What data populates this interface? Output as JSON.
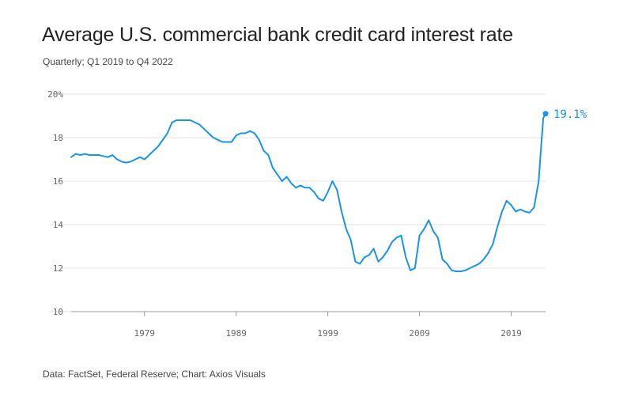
{
  "title": "Average U.S. commercial bank credit card interest rate",
  "subtitle": "Quarterly; Q1 2019 to Q4 2022",
  "source": "Data: FactSet, Federal Reserve; Chart: Axios Visuals",
  "colors": {
    "line": "#1a94e6",
    "grid": "#e3e3e3",
    "axis": "#999999",
    "text": "#222222"
  },
  "chart_data": {
    "type": "line",
    "title": "Average U.S. commercial bank credit card interest rate",
    "subtitle": "Quarterly; Q1 2019 to Q4 2022",
    "xlabel": "",
    "ylabel": "",
    "xlim": [
      1971.0,
      2022.75
    ],
    "ylim": [
      10,
      20
    ],
    "xticks": [
      1979,
      1989,
      1999,
      2009,
      2019
    ],
    "xtick_labels": [
      "1979",
      "1989",
      "1999",
      "2009",
      "2019"
    ],
    "yticks": [
      10,
      12,
      14,
      16,
      18,
      20
    ],
    "ytick_labels": [
      "10",
      "12",
      "14",
      "16",
      "18",
      "20%"
    ],
    "grid": "horizontal",
    "series": [
      {
        "x": [
          1971.0,
          1971.5,
          1972.0,
          1972.5,
          1973.0,
          1974.0,
          1975.0,
          1975.5,
          1976.0,
          1976.5,
          1977.0,
          1977.5,
          1978.0,
          1978.5,
          1979.0,
          1979.5,
          1980.0,
          1980.5,
          1981.0,
          1981.5,
          1982.0,
          1982.5,
          1983.0,
          1984.0,
          1985.0,
          1985.5,
          1986.0,
          1986.5,
          1987.0,
          1987.5,
          1988.0,
          1988.5,
          1989.0,
          1989.5,
          1990.0,
          1990.5,
          1991.0,
          1991.5,
          1992.0,
          1992.5,
          1993.0,
          1993.5,
          1994.0,
          1994.5,
          1995.0,
          1995.5,
          1996.0,
          1996.5,
          1997.0,
          1997.5,
          1998.0,
          1998.5,
          1999.0,
          1999.5,
          2000.0,
          2000.5,
          2001.0,
          2001.5,
          2002.0,
          2002.5,
          2003.0,
          2003.5,
          2004.0,
          2004.5,
          2005.0,
          2005.5,
          2006.0,
          2006.5,
          2007.0,
          2007.5,
          2008.0,
          2008.5,
          2009.0,
          2009.5,
          2010.0,
          2010.5,
          2011.0,
          2011.5,
          2012.0,
          2012.5,
          2013.0,
          2013.5,
          2014.0,
          2014.5,
          2015.0,
          2015.5,
          2016.0,
          2016.5,
          2017.0,
          2017.5,
          2018.0,
          2018.5,
          2019.0,
          2019.5,
          2020.0,
          2020.5,
          2021.0,
          2021.5,
          2022.0,
          2022.25,
          2022.5,
          2022.75
        ],
        "values": [
          17.1,
          17.25,
          17.2,
          17.25,
          17.2,
          17.2,
          17.1,
          17.2,
          17.0,
          16.9,
          16.85,
          16.9,
          17.0,
          17.1,
          17.0,
          17.2,
          17.4,
          17.6,
          17.9,
          18.2,
          18.7,
          18.8,
          18.8,
          18.8,
          18.6,
          18.4,
          18.2,
          18.0,
          17.9,
          17.8,
          17.8,
          17.8,
          18.1,
          18.2,
          18.2,
          18.3,
          18.2,
          17.9,
          17.4,
          17.2,
          16.6,
          16.3,
          16.0,
          16.2,
          15.9,
          15.7,
          15.8,
          15.7,
          15.7,
          15.5,
          15.2,
          15.1,
          15.5,
          16.0,
          15.6,
          14.6,
          13.8,
          13.3,
          12.3,
          12.2,
          12.5,
          12.6,
          12.9,
          12.3,
          12.5,
          12.8,
          13.2,
          13.4,
          13.5,
          12.5,
          11.9,
          12.0,
          13.5,
          13.8,
          14.2,
          13.7,
          13.4,
          12.4,
          12.2,
          11.9,
          11.85,
          11.85,
          11.9,
          12.0,
          12.1,
          12.2,
          12.4,
          12.7,
          13.1,
          13.9,
          14.6,
          15.1,
          14.9,
          14.6,
          14.7,
          14.6,
          14.55,
          14.8,
          16.0,
          17.5,
          18.9,
          19.1
        ]
      }
    ],
    "annotations": [
      {
        "text": "19.1%",
        "x": 2022.75,
        "y": 19.1
      }
    ]
  }
}
